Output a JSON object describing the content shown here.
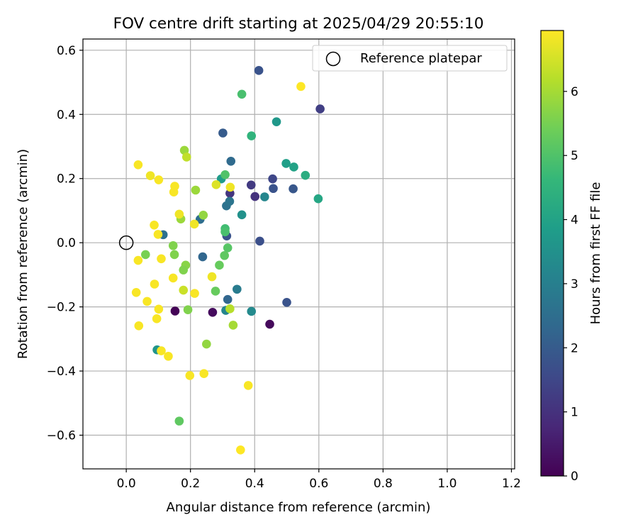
{
  "chart_data": {
    "type": "scatter",
    "title": "FOV centre drift starting at 2025/04/29 20:55:10",
    "xlabel": "Angular distance from reference (arcmin)",
    "ylabel": "Rotation from reference (arcmin)",
    "xlim": [
      -0.135,
      1.21
    ],
    "ylim": [
      -0.705,
      0.635
    ],
    "xticks": [
      0.0,
      0.2,
      0.4,
      0.6,
      0.8,
      1.0,
      1.2
    ],
    "xtick_labels": [
      "0.0",
      "0.2",
      "0.4",
      "0.6",
      "0.8",
      "1.0",
      "1.2"
    ],
    "yticks": [
      -0.6,
      -0.4,
      -0.2,
      0.0,
      0.2,
      0.4,
      0.6
    ],
    "ytick_labels": [
      "−0.6",
      "−0.4",
      "−0.2",
      "0.0",
      "0.2",
      "0.4",
      "0.6"
    ],
    "grid": true,
    "legend": {
      "position": "top-right",
      "entries": [
        {
          "label": "Reference platepar",
          "marker": "hollow-circle"
        }
      ]
    },
    "reference_point": {
      "x": 0.0,
      "y": 0.0
    },
    "colorbar": {
      "label": "Hours from first FF file",
      "colormap": "viridis",
      "range": [
        0,
        6.95
      ],
      "ticks": [
        0,
        1,
        2,
        3,
        4,
        5,
        6
      ],
      "tick_labels": [
        "0",
        "1",
        "2",
        "3",
        "4",
        "5",
        "6"
      ],
      "stops": [
        "#440154",
        "#482878",
        "#3e4989",
        "#31688e",
        "#26828e",
        "#1f9e89",
        "#35b779",
        "#6ece58",
        "#b5de2b",
        "#fde725"
      ]
    },
    "points": [
      {
        "x": 0.152,
        "y": -0.213,
        "h": 0.05
      },
      {
        "x": 0.269,
        "y": -0.217,
        "h": 0.2
      },
      {
        "x": 0.447,
        "y": -0.254,
        "h": 0.15
      },
      {
        "x": 0.604,
        "y": 0.417,
        "h": 1.3
      },
      {
        "x": 0.401,
        "y": 0.144,
        "h": 1.0
      },
      {
        "x": 0.389,
        "y": 0.18,
        "h": 1.2
      },
      {
        "x": 0.323,
        "y": 0.154,
        "h": 1.1
      },
      {
        "x": 0.456,
        "y": 0.199,
        "h": 1.5
      },
      {
        "x": 0.413,
        "y": 0.537,
        "h": 1.8
      },
      {
        "x": 0.5,
        "y": -0.186,
        "h": 1.8
      },
      {
        "x": 0.416,
        "y": 0.005,
        "h": 1.7
      },
      {
        "x": 0.458,
        "y": 0.169,
        "h": 1.8
      },
      {
        "x": 0.52,
        "y": 0.168,
        "h": 1.9
      },
      {
        "x": 0.301,
        "y": 0.342,
        "h": 2.0
      },
      {
        "x": 0.313,
        "y": 0.021,
        "h": 1.8
      },
      {
        "x": 0.316,
        "y": -0.177,
        "h": 2.3
      },
      {
        "x": 0.326,
        "y": 0.254,
        "h": 2.4
      },
      {
        "x": 0.238,
        "y": -0.044,
        "h": 2.3
      },
      {
        "x": 0.312,
        "y": 0.115,
        "h": 2.6
      },
      {
        "x": 0.322,
        "y": 0.129,
        "h": 2.7
      },
      {
        "x": 0.23,
        "y": 0.073,
        "h": 2.5
      },
      {
        "x": 0.115,
        "y": 0.025,
        "h": 2.6
      },
      {
        "x": 0.345,
        "y": -0.145,
        "h": 2.9
      },
      {
        "x": 0.431,
        "y": 0.143,
        "h": 3.2
      },
      {
        "x": 0.39,
        "y": -0.214,
        "h": 3.3
      },
      {
        "x": 0.31,
        "y": -0.211,
        "h": 3.2
      },
      {
        "x": 0.36,
        "y": 0.087,
        "h": 3.5
      },
      {
        "x": 0.468,
        "y": 0.377,
        "h": 3.7
      },
      {
        "x": 0.096,
        "y": -0.334,
        "h": 3.6
      },
      {
        "x": 0.296,
        "y": 0.199,
        "h": 3.8
      },
      {
        "x": 0.498,
        "y": 0.247,
        "h": 3.9
      },
      {
        "x": 0.522,
        "y": 0.236,
        "h": 4.0
      },
      {
        "x": 0.598,
        "y": 0.137,
        "h": 4.1
      },
      {
        "x": 0.39,
        "y": 0.333,
        "h": 4.5
      },
      {
        "x": 0.558,
        "y": 0.21,
        "h": 4.3
      },
      {
        "x": 0.308,
        "y": 0.044,
        "h": 4.8
      },
      {
        "x": 0.308,
        "y": 0.034,
        "h": 4.9
      },
      {
        "x": 0.36,
        "y": 0.463,
        "h": 4.9
      },
      {
        "x": 0.308,
        "y": 0.212,
        "h": 5.0
      },
      {
        "x": 0.316,
        "y": -0.016,
        "h": 5.1
      },
      {
        "x": 0.306,
        "y": -0.04,
        "h": 5.2
      },
      {
        "x": 0.29,
        "y": -0.07,
        "h": 5.3
      },
      {
        "x": 0.278,
        "y": -0.151,
        "h": 5.3
      },
      {
        "x": 0.165,
        "y": -0.556,
        "h": 5.2
      },
      {
        "x": 0.06,
        "y": -0.037,
        "h": 5.5
      },
      {
        "x": 0.146,
        "y": -0.009,
        "h": 5.6
      },
      {
        "x": 0.15,
        "y": -0.037,
        "h": 5.6
      },
      {
        "x": 0.185,
        "y": -0.07,
        "h": 5.7
      },
      {
        "x": 0.178,
        "y": -0.085,
        "h": 5.6
      },
      {
        "x": 0.192,
        "y": -0.209,
        "h": 5.6
      },
      {
        "x": 0.25,
        "y": -0.316,
        "h": 5.8
      },
      {
        "x": 0.333,
        "y": -0.257,
        "h": 6.0
      },
      {
        "x": 0.323,
        "y": -0.206,
        "h": 6.2
      },
      {
        "x": 0.17,
        "y": 0.074,
        "h": 5.9
      },
      {
        "x": 0.24,
        "y": 0.086,
        "h": 5.8
      },
      {
        "x": 0.216,
        "y": 0.164,
        "h": 5.9
      },
      {
        "x": 0.181,
        "y": 0.288,
        "h": 5.9
      },
      {
        "x": 0.188,
        "y": 0.267,
        "h": 6.3
      },
      {
        "x": 0.178,
        "y": -0.148,
        "h": 6.4
      },
      {
        "x": 0.28,
        "y": 0.181,
        "h": 6.6
      },
      {
        "x": 0.324,
        "y": 0.173,
        "h": 6.8
      },
      {
        "x": 0.037,
        "y": 0.243,
        "h": 6.9
      },
      {
        "x": 0.075,
        "y": 0.209,
        "h": 6.8
      },
      {
        "x": 0.101,
        "y": 0.196,
        "h": 6.9
      },
      {
        "x": 0.151,
        "y": 0.176,
        "h": 6.9
      },
      {
        "x": 0.148,
        "y": 0.158,
        "h": 6.9
      },
      {
        "x": 0.165,
        "y": 0.089,
        "h": 6.8
      },
      {
        "x": 0.212,
        "y": 0.058,
        "h": 6.8
      },
      {
        "x": 0.087,
        "y": 0.055,
        "h": 6.9
      },
      {
        "x": 0.099,
        "y": 0.026,
        "h": 6.9
      },
      {
        "x": 0.037,
        "y": -0.055,
        "h": 6.9
      },
      {
        "x": 0.109,
        "y": -0.05,
        "h": 6.9
      },
      {
        "x": 0.146,
        "y": -0.11,
        "h": 6.9
      },
      {
        "x": 0.088,
        "y": -0.129,
        "h": 6.9
      },
      {
        "x": 0.267,
        "y": -0.106,
        "h": 6.8
      },
      {
        "x": 0.213,
        "y": -0.158,
        "h": 6.9
      },
      {
        "x": 0.031,
        "y": -0.155,
        "h": 6.9
      },
      {
        "x": 0.065,
        "y": -0.183,
        "h": 6.9
      },
      {
        "x": 0.101,
        "y": -0.207,
        "h": 6.9
      },
      {
        "x": 0.095,
        "y": -0.237,
        "h": 6.9
      },
      {
        "x": 0.039,
        "y": -0.259,
        "h": 6.9
      },
      {
        "x": 0.109,
        "y": -0.337,
        "h": 6.9
      },
      {
        "x": 0.131,
        "y": -0.354,
        "h": 6.9
      },
      {
        "x": 0.198,
        "y": -0.414,
        "h": 6.9
      },
      {
        "x": 0.242,
        "y": -0.408,
        "h": 6.9
      },
      {
        "x": 0.38,
        "y": -0.445,
        "h": 6.9
      },
      {
        "x": 0.356,
        "y": -0.646,
        "h": 6.95
      },
      {
        "x": 0.544,
        "y": 0.487,
        "h": 6.95
      }
    ]
  }
}
